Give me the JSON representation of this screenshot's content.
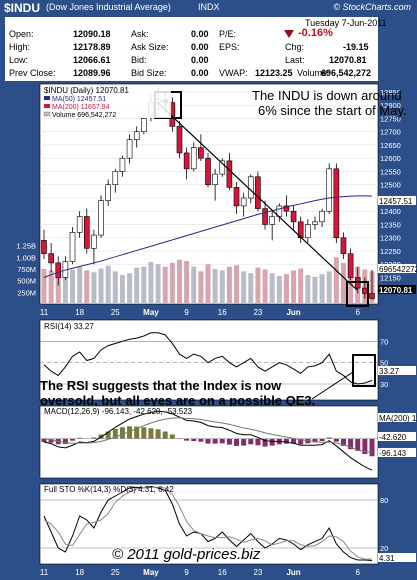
{
  "header": {
    "symbol": "$INDU",
    "name": "(Dow Jones Industrial Average)",
    "exchange": "INDX",
    "source": "© StockCharts.com"
  },
  "quote": {
    "date": "Tuesday 7-Jun-2011",
    "change_pct": "-0.16%",
    "rows": [
      [
        {
          "l": "Open:",
          "v": "12090.18"
        },
        {
          "l": "Ask:",
          "v": "0.00"
        },
        {
          "l": "P/E:",
          "v": ""
        }
      ],
      [
        {
          "l": "High:",
          "v": "12178.89"
        },
        {
          "l": "Ask Size:",
          "v": "0.00"
        },
        {
          "l": "EPS:",
          "v": ""
        }
      ],
      [
        {
          "l": "Low:",
          "v": "12066.61"
        },
        {
          "l": "Bid:",
          "v": "0.00"
        },
        {
          "l": "Last:",
          "v": "12070.81"
        }
      ],
      [
        {
          "l": "Prev Close:",
          "v": "12089.96"
        },
        {
          "l": "Bid Size:",
          "v": "0.00"
        },
        {
          "l": "VWAP:",
          "v": "12123.25"
        }
      ]
    ],
    "chg_label": "Chg:",
    "chg_value": "-19.15",
    "volume_label": "Volume:",
    "volume_value": "696,542,272"
  },
  "colors": {
    "frame": "#2c4f8a",
    "up": "#ffffff",
    "down": "#d6153a",
    "ma50": "#2a2a8a",
    "ma200": "#d6153a",
    "volume": "#b9bcc7",
    "panel_bg": "#ffffff",
    "macd_hist": "#8a2a6a",
    "macd_hist_pos": "#7a7a3a"
  },
  "chart_data": [
    {
      "type": "candlestick",
      "title": "$INDU (Daily) 12070.81",
      "legend": [
        {
          "name": "MA(50) 12457.51",
          "color": "#2a2a8a"
        },
        {
          "name": "MA(200) 11657.94",
          "color": "#d6153a"
        },
        {
          "name": "Volume 696,542,272",
          "color": "#b9bcc7"
        }
      ],
      "xticks": [
        "11",
        "18",
        "25",
        "May",
        "9",
        "16",
        "23",
        "Jun",
        "6"
      ],
      "yticks": [
        12100,
        12150,
        12200,
        12250,
        12300,
        12350,
        12400,
        12450,
        12500,
        12550,
        12600,
        12650,
        12700,
        12750,
        12800,
        12850
      ],
      "ylim": [
        12050,
        12880
      ],
      "volume_ticks": [
        "250M",
        "500M",
        "750M",
        "1.00B",
        "1.25B"
      ],
      "volume_max": 1.5,
      "price_tags": [
        "12457.51",
        "12070.81"
      ],
      "volume_tag": "696542272",
      "candles": [
        {
          "o": 12290,
          "h": 12330,
          "l": 12220,
          "c": 12240,
          "v": 0.75
        },
        {
          "o": 12240,
          "h": 12280,
          "l": 12170,
          "c": 12205,
          "v": 0.72
        },
        {
          "o": 12205,
          "h": 12230,
          "l": 12120,
          "c": 12150,
          "v": 0.78
        },
        {
          "o": 12150,
          "h": 12230,
          "l": 12140,
          "c": 12210,
          "v": 0.7
        },
        {
          "o": 12210,
          "h": 12340,
          "l": 12200,
          "c": 12320,
          "v": 0.74
        },
        {
          "o": 12320,
          "h": 12400,
          "l": 12300,
          "c": 12380,
          "v": 0.8
        },
        {
          "o": 12380,
          "h": 12410,
          "l": 12240,
          "c": 12260,
          "v": 0.72
        },
        {
          "o": 12260,
          "h": 12330,
          "l": 12200,
          "c": 12310,
          "v": 0.68
        },
        {
          "o": 12310,
          "h": 12460,
          "l": 12300,
          "c": 12440,
          "v": 0.76
        },
        {
          "o": 12440,
          "h": 12520,
          "l": 12420,
          "c": 12500,
          "v": 0.82
        },
        {
          "o": 12500,
          "h": 12560,
          "l": 12470,
          "c": 12550,
          "v": 0.7
        },
        {
          "o": 12550,
          "h": 12610,
          "l": 12530,
          "c": 12600,
          "v": 0.62
        },
        {
          "o": 12600,
          "h": 12690,
          "l": 12580,
          "c": 12670,
          "v": 0.66
        },
        {
          "o": 12670,
          "h": 12720,
          "l": 12640,
          "c": 12700,
          "v": 0.78
        },
        {
          "o": 12700,
          "h": 12760,
          "l": 12690,
          "c": 12750,
          "v": 0.8
        },
        {
          "o": 12760,
          "h": 12840,
          "l": 12740,
          "c": 12810,
          "v": 0.9
        },
        {
          "o": 12810,
          "h": 12870,
          "l": 12780,
          "c": 12820,
          "v": 0.85
        },
        {
          "o": 12820,
          "h": 12850,
          "l": 12770,
          "c": 12810,
          "v": 0.8
        },
        {
          "o": 12810,
          "h": 12830,
          "l": 12700,
          "c": 12720,
          "v": 0.88
        },
        {
          "o": 12720,
          "h": 12740,
          "l": 12600,
          "c": 12620,
          "v": 0.95
        },
        {
          "o": 12620,
          "h": 12640,
          "l": 12520,
          "c": 12560,
          "v": 0.92
        },
        {
          "o": 12560,
          "h": 12660,
          "l": 12550,
          "c": 12640,
          "v": 0.8
        },
        {
          "o": 12640,
          "h": 12690,
          "l": 12590,
          "c": 12600,
          "v": 0.7
        },
        {
          "o": 12600,
          "h": 12620,
          "l": 12490,
          "c": 12500,
          "v": 0.85
        },
        {
          "o": 12500,
          "h": 12560,
          "l": 12440,
          "c": 12540,
          "v": 0.75
        },
        {
          "o": 12540,
          "h": 12600,
          "l": 12530,
          "c": 12590,
          "v": 0.72
        },
        {
          "o": 12590,
          "h": 12620,
          "l": 12480,
          "c": 12490,
          "v": 0.8
        },
        {
          "o": 12490,
          "h": 12510,
          "l": 12390,
          "c": 12420,
          "v": 0.83
        },
        {
          "o": 12420,
          "h": 12470,
          "l": 12380,
          "c": 12450,
          "v": 0.7
        },
        {
          "o": 12450,
          "h": 12540,
          "l": 12430,
          "c": 12530,
          "v": 0.66
        },
        {
          "o": 12530,
          "h": 12550,
          "l": 12400,
          "c": 12410,
          "v": 0.78
        },
        {
          "o": 12410,
          "h": 12440,
          "l": 12330,
          "c": 12350,
          "v": 0.74
        },
        {
          "o": 12350,
          "h": 12400,
          "l": 12290,
          "c": 12380,
          "v": 0.66
        },
        {
          "o": 12380,
          "h": 12430,
          "l": 12360,
          "c": 12420,
          "v": 0.6
        },
        {
          "o": 12420,
          "h": 12460,
          "l": 12380,
          "c": 12400,
          "v": 0.64
        },
        {
          "o": 12400,
          "h": 12420,
          "l": 12330,
          "c": 12360,
          "v": 0.72
        },
        {
          "o": 12360,
          "h": 12380,
          "l": 12280,
          "c": 12300,
          "v": 0.76
        },
        {
          "o": 12300,
          "h": 12370,
          "l": 12280,
          "c": 12350,
          "v": 0.62
        },
        {
          "o": 12350,
          "h": 12380,
          "l": 12330,
          "c": 12360,
          "v": 0.58
        },
        {
          "o": 12360,
          "h": 12410,
          "l": 12340,
          "c": 12400,
          "v": 0.64
        },
        {
          "o": 12400,
          "h": 12580,
          "l": 12390,
          "c": 12560,
          "v": 0.7
        },
        {
          "o": 12560,
          "h": 12580,
          "l": 12280,
          "c": 12300,
          "v": 1.0
        },
        {
          "o": 12300,
          "h": 12320,
          "l": 12220,
          "c": 12240,
          "v": 0.88
        },
        {
          "o": 12240,
          "h": 12260,
          "l": 12140,
          "c": 12150,
          "v": 0.92
        },
        {
          "o": 12150,
          "h": 12190,
          "l": 12090,
          "c": 12110,
          "v": 0.8
        },
        {
          "o": 12110,
          "h": 12150,
          "l": 12070,
          "c": 12090,
          "v": 0.74
        },
        {
          "o": 12090,
          "h": 12179,
          "l": 12067,
          "c": 12071,
          "v": 0.7
        }
      ],
      "ma50": [
        12150,
        12160,
        12170,
        12178,
        12185,
        12192,
        12198,
        12205,
        12212,
        12220,
        12228,
        12236,
        12244,
        12252,
        12260,
        12268,
        12276,
        12284,
        12292,
        12300,
        12308,
        12316,
        12324,
        12332,
        12340,
        12348,
        12356,
        12364,
        12372,
        12380,
        12388,
        12395,
        12402,
        12409,
        12416,
        12422,
        12428,
        12434,
        12440,
        12445,
        12450,
        12453,
        12455,
        12457,
        12458,
        12458,
        12457.51
      ]
    },
    {
      "type": "line",
      "title": "RSI(14) 33.27",
      "yticks": [
        30,
        50,
        70
      ],
      "ylim": [
        15,
        90
      ],
      "last_value_tag": "33.27",
      "values": [
        48,
        42,
        38,
        46,
        56,
        60,
        52,
        54,
        62,
        66,
        68,
        70,
        72,
        73,
        75,
        78,
        78,
        76,
        68,
        58,
        54,
        58,
        56,
        50,
        54,
        56,
        50,
        46,
        50,
        54,
        46,
        42,
        46,
        50,
        48,
        44,
        40,
        46,
        47,
        50,
        58,
        42,
        38,
        32,
        30,
        31,
        33.27
      ]
    },
    {
      "type": "line",
      "title": "MACD(12,26,9) -96.143, -42.620, -53.523",
      "yticks": [],
      "tags": [
        "-42.620",
        "-96.143"
      ],
      "ylim": [
        -120,
        100
      ],
      "macd": [
        -10,
        -15,
        -25,
        -28,
        -20,
        -10,
        -12,
        -8,
        5,
        20,
        35,
        48,
        60,
        68,
        75,
        80,
        84,
        82,
        76,
        66,
        56,
        54,
        50,
        40,
        36,
        34,
        26,
        16,
        12,
        12,
        4,
        -6,
        -8,
        -8,
        -10,
        -14,
        -20,
        -20,
        -20,
        -18,
        -6,
        -22,
        -40,
        -58,
        -72,
        -86,
        -96.143
      ],
      "signal": [
        0,
        -3,
        -8,
        -12,
        -14,
        -13,
        -13,
        -12,
        -8,
        -2,
        5,
        13,
        22,
        31,
        40,
        48,
        55,
        60,
        63,
        64,
        62,
        61,
        59,
        55,
        51,
        48,
        44,
        38,
        33,
        29,
        24,
        18,
        13,
        9,
        5,
        1,
        -3,
        -6,
        -9,
        -11,
        -10,
        -13,
        -18,
        -26,
        -35,
        -39,
        -42.62
      ]
    },
    {
      "type": "line",
      "title": "Full STO %K(14,3) %D(3) 4.31, 6.42",
      "yticks": [
        20,
        80
      ],
      "ylim": [
        0,
        100
      ],
      "last_value_tag": "4.31",
      "k": [
        60,
        40,
        20,
        15,
        35,
        60,
        55,
        45,
        65,
        80,
        85,
        90,
        95,
        96,
        95,
        97,
        95,
        92,
        75,
        50,
        35,
        40,
        38,
        28,
        32,
        40,
        30,
        22,
        30,
        38,
        28,
        20,
        25,
        32,
        30,
        25,
        18,
        24,
        28,
        32,
        45,
        25,
        15,
        8,
        5,
        5,
        4.31
      ],
      "d": [
        55,
        50,
        40,
        25,
        23,
        37,
        50,
        52,
        55,
        63,
        77,
        85,
        90,
        94,
        95,
        96,
        96,
        95,
        87,
        72,
        53,
        42,
        38,
        35,
        33,
        33,
        34,
        31,
        27,
        30,
        32,
        29,
        24,
        26,
        29,
        29,
        24,
        22,
        23,
        28,
        35,
        34,
        28,
        16,
        9,
        6,
        6.42
      ]
    }
  ],
  "annotations": {
    "price_note_line1": "The INDU is down around",
    "price_note_line2": "6% since the start of May.",
    "rsi_note_line1": "The RSI suggests that the Index is now",
    "rsi_note_line2": "oversold, but all eyes are on a possible QE3.",
    "copyright": "© 2011 gold-prices.biz"
  }
}
